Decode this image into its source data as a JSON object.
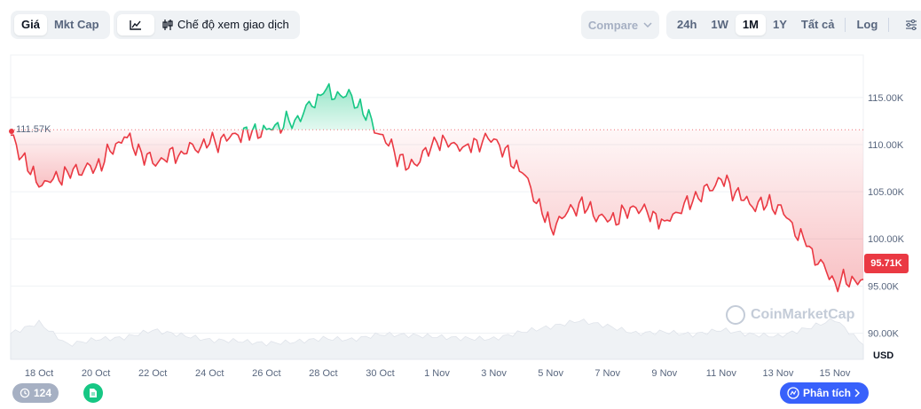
{
  "toolbar": {
    "metric_tabs": [
      "Giá",
      "Mkt Cap"
    ],
    "active_metric": "Giá",
    "trading_mode_label": "Chế độ xem giao dịch",
    "compare_label": "Compare",
    "ranges": [
      "24h",
      "1W",
      "1M",
      "1Y",
      "Tất cả"
    ],
    "active_range": "1M",
    "log_label": "Log"
  },
  "chart_data": {
    "type": "area",
    "x": [
      "17 Oct",
      "18 Oct",
      "19 Oct",
      "20 Oct",
      "21 Oct",
      "22 Oct",
      "23 Oct",
      "24 Oct",
      "25 Oct",
      "26 Oct",
      "27 Oct",
      "28 Oct",
      "29 Oct",
      "30 Oct",
      "31 Oct",
      "1 Nov",
      "2 Nov",
      "3 Nov",
      "4 Nov",
      "5 Nov",
      "6 Nov",
      "7 Nov",
      "8 Nov",
      "9 Nov",
      "10 Nov",
      "11 Nov",
      "12 Nov",
      "13 Nov",
      "14 Nov",
      "15 Nov",
      "16 Nov"
    ],
    "price": [
      111.0,
      105.5,
      107.1,
      107.6,
      110.8,
      108.0,
      109.3,
      110.1,
      111.0,
      111.6,
      112.6,
      115.4,
      115.2,
      111.1,
      107.5,
      110.2,
      109.9,
      110.6,
      107.0,
      101.2,
      103.8,
      101.8,
      103.3,
      101.9,
      104.0,
      106.3,
      103.7,
      103.6,
      99.2,
      95.4,
      95.71
    ],
    "volume": [
      0.62,
      0.88,
      0.35,
      0.48,
      0.52,
      0.7,
      0.58,
      0.46,
      0.44,
      0.38,
      0.42,
      0.5,
      0.47,
      0.6,
      0.58,
      0.54,
      0.5,
      0.49,
      0.66,
      0.78,
      0.93,
      0.8,
      0.62,
      0.66,
      0.59,
      0.71,
      0.6,
      0.55,
      0.74,
      0.96,
      0.35
    ],
    "reference_price": 111.57,
    "reference_label": "111.57K",
    "current_label": "95.71K",
    "y_ticks": [
      "90.00K",
      "95.00K",
      "100.00K",
      "105.00K",
      "110.00K",
      "115.00K"
    ],
    "y_tick_values": [
      90,
      95,
      100,
      105,
      110,
      115
    ],
    "ylim": [
      87.5,
      119.5
    ],
    "x_ticks": [
      "18 Oct",
      "20 Oct",
      "22 Oct",
      "24 Oct",
      "26 Oct",
      "28 Oct",
      "30 Oct",
      "1 Nov",
      "3 Nov",
      "5 Nov",
      "7 Nov",
      "9 Nov",
      "11 Nov",
      "13 Nov",
      "15 Nov"
    ],
    "x_tick_index": [
      1,
      3,
      5,
      7,
      9,
      11,
      13,
      15,
      17,
      19,
      21,
      23,
      25,
      27,
      29
    ],
    "currency": "USD",
    "watermark": "CoinMarketCap",
    "colors": {
      "up": "#16c784",
      "down": "#ea3943",
      "volume": "#eff2f5",
      "grid": "#eff2f5"
    }
  },
  "footer": {
    "history_count": "124",
    "analysis_label": "Phân tích"
  }
}
